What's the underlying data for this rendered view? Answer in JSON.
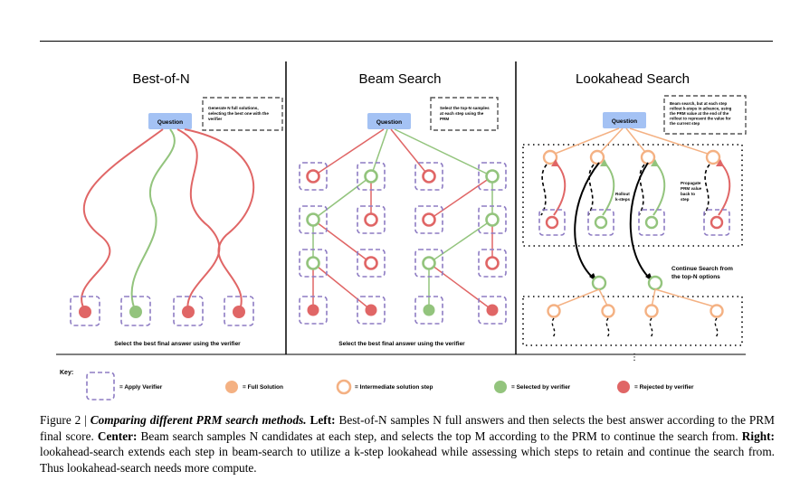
{
  "panels": {
    "best_of_n": {
      "title": "Best-of-N",
      "question": "Question",
      "note": [
        "Generate N full solutions,",
        "selecting the best one with the",
        "verifier"
      ],
      "bottom": "Select the best final answer using the verifier"
    },
    "beam": {
      "title": "Beam Search",
      "question": "Question",
      "note": [
        "Select the top-N samples",
        "at each step using the",
        "PRM"
      ],
      "bottom": "Select the best final answer using the verifier"
    },
    "lookahead": {
      "title": "Lookahead Search",
      "question": "Question",
      "note": [
        "Beam search, but at each step",
        "rollout k-steps in advance, using",
        "the PRM value at the end of the",
        "rollout to represent the value for",
        "the current step"
      ],
      "rollout": [
        "Rollout",
        "k-steps"
      ],
      "propagate": [
        "Propagate",
        "PRM value",
        "back to",
        "step"
      ],
      "continue": [
        "Continue Search from",
        "the top-N options"
      ],
      "ellipsis": "⋮"
    }
  },
  "key": {
    "label": "Key:",
    "items": [
      {
        "label": "= Apply Verifier",
        "kind": "verifier"
      },
      {
        "label": "= Full Solution",
        "kind": "full",
        "color": "#f4b183"
      },
      {
        "label": "= Intermediate solution step",
        "kind": "intermediate",
        "color": "#f4b183"
      },
      {
        "label": "= Selected by verifier",
        "kind": "selected",
        "color": "#93c47d"
      },
      {
        "label": "= Rejected by verifier",
        "kind": "rejected",
        "color": "#e06666"
      }
    ]
  },
  "caption": {
    "figure": "Figure 2",
    "sep": " | ",
    "title": "Comparing different PRM search methods.",
    "left_label": "Left:",
    "left_text": " Best-of-N samples N full answers and then selects the best answer according to the PRM final score. ",
    "center_label": "Center:",
    "center_text": " Beam search samples N candidates at each step, and selects the top M according to the PRM to continue the search from. ",
    "right_label": "Right:",
    "right_text": " lookahead-search extends each step in beam-search to utilize a k-step lookahead while assessing which steps to retain and continue the search from. Thus lookahead-search needs more compute."
  },
  "colors": {
    "red": "#e06666",
    "green": "#93c47d",
    "orange": "#f4b183",
    "question_bg": "#a4c2f4",
    "verifier_border": "#8e7cc3"
  }
}
